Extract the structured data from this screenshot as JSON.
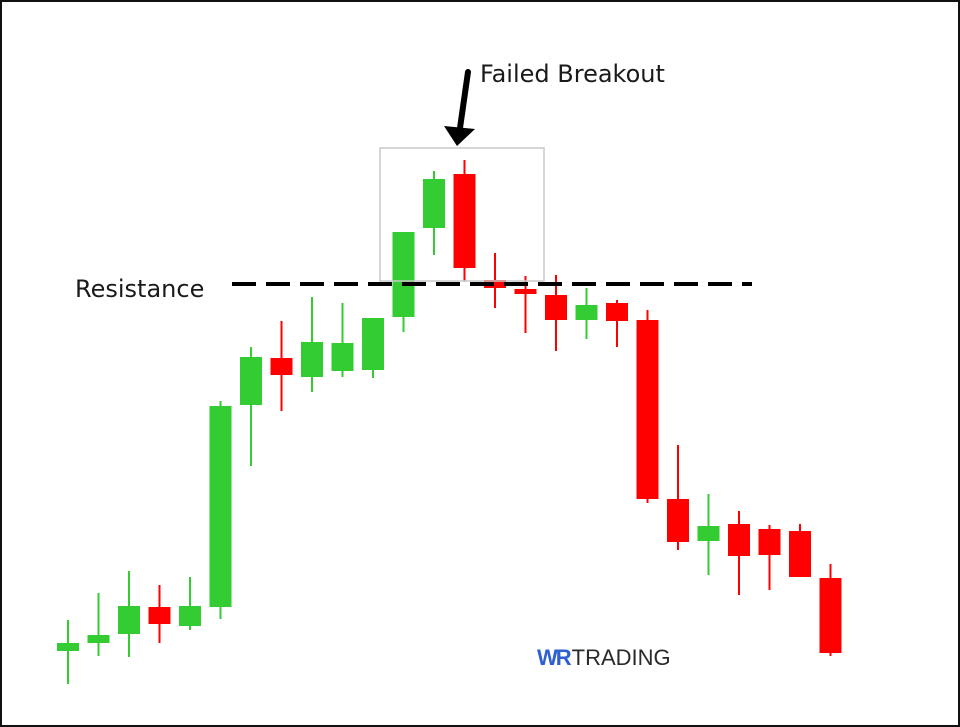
{
  "chart_data": {
    "type": "candlestick",
    "title": "",
    "xlabel": "",
    "ylabel": "",
    "grid": false,
    "legend": "none",
    "colors": {
      "up": "#33cc33",
      "down": "#ff0000",
      "resistance": "#000000",
      "highlight_box": "#cccccc"
    },
    "candles": [
      {
        "o": 10.2,
        "c": 11.8,
        "h": 16.4,
        "l": 3.6
      },
      {
        "o": 11.8,
        "c": 13.4,
        "h": 21.8,
        "l": 9.2
      },
      {
        "o": 13.6,
        "c": 19.2,
        "h": 26.2,
        "l": 9.0
      },
      {
        "o": 19.0,
        "c": 15.6,
        "h": 23.4,
        "l": 11.8
      },
      {
        "o": 15.2,
        "c": 19.2,
        "h": 25.0,
        "l": 14.4
      },
      {
        "o": 19.0,
        "c": 59.2,
        "h": 60.2,
        "l": 16.6
      },
      {
        "o": 59.4,
        "c": 69.0,
        "h": 71.0,
        "l": 47.2
      },
      {
        "o": 68.8,
        "c": 65.4,
        "h": 76.2,
        "l": 58.2
      },
      {
        "o": 65.0,
        "c": 72.0,
        "h": 81.0,
        "l": 62.0
      },
      {
        "o": 66.2,
        "c": 71.8,
        "h": 79.8,
        "l": 65.0
      },
      {
        "o": 66.4,
        "c": 76.8,
        "h": 76.8,
        "l": 64.8
      },
      {
        "o": 77.0,
        "c": 94.0,
        "h": 94.0,
        "l": 74.0
      },
      {
        "o": 94.8,
        "c": 104.6,
        "h": 106.2,
        "l": 89.4
      },
      {
        "o": 105.6,
        "c": 86.8,
        "h": 108.4,
        "l": 84.2
      },
      {
        "o": 84.4,
        "c": 82.8,
        "h": 89.8,
        "l": 78.8
      },
      {
        "o": 82.6,
        "c": 81.6,
        "h": 85.2,
        "l": 73.8
      },
      {
        "o": 81.4,
        "c": 76.4,
        "h": 85.4,
        "l": 70.2
      },
      {
        "o": 76.4,
        "c": 79.4,
        "h": 82.8,
        "l": 72.6
      },
      {
        "o": 79.8,
        "c": 76.2,
        "h": 80.4,
        "l": 71.0
      },
      {
        "o": 76.4,
        "c": 40.6,
        "h": 78.4,
        "l": 39.8
      },
      {
        "o": 40.6,
        "c": 32.0,
        "h": 51.4,
        "l": 30.4
      },
      {
        "o": 32.2,
        "c": 35.2,
        "h": 41.6,
        "l": 25.4
      },
      {
        "o": 35.6,
        "c": 29.2,
        "h": 38.2,
        "l": 21.4
      },
      {
        "o": 34.6,
        "c": 29.4,
        "h": 35.4,
        "l": 22.4
      },
      {
        "o": 34.2,
        "c": 25.0,
        "h": 35.6,
        "l": 25.0
      },
      {
        "o": 24.8,
        "c": 9.8,
        "h": 27.6,
        "l": 9.2
      }
    ],
    "resistance_level": 83.6,
    "annotations": {
      "resistance_label": "Resistance",
      "breakout_label": "Failed Breakout"
    }
  },
  "branding": {
    "logo_part1": "WR",
    "logo_part2": "TRADING",
    "logo_color": "#2f5fd0"
  }
}
